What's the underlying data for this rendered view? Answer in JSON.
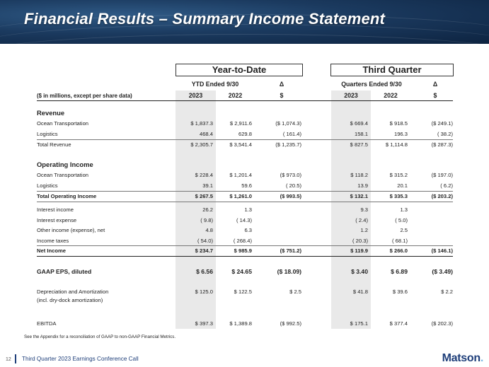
{
  "title": "Financial Results – Summary Income Statement",
  "group_ytd": "Year-to-Date",
  "group_q3": "Third Quarter",
  "sub_ytd": "YTD Ended 9/30",
  "sub_q3": "Quarters Ended 9/30",
  "delta_symbol": "Δ",
  "units_label": "($ in millions, except per share data)",
  "col_2023": "2023",
  "col_2022": "2022",
  "col_dollar": "$",
  "sec_revenue": "Revenue",
  "sec_operating": "Operating Income",
  "rows": {
    "rev_ocean": {
      "label": "Ocean Transportation",
      "cells": [
        "$ 1,837.3",
        "$ 2,911.6",
        "($ 1,074.3)",
        "$ 669.4",
        "$ 918.5",
        "($ 249.1)"
      ]
    },
    "rev_logistics": {
      "label": "Logistics",
      "cells": [
        "468.4",
        "629.8",
        "( 161.4)",
        "158.1",
        "196.3",
        "( 38.2)"
      ]
    },
    "rev_total": {
      "label": "Total Revenue",
      "cells": [
        "$ 2,305.7",
        "$ 3,541.4",
        "($ 1,235.7)",
        "$ 827.5",
        "$ 1,114.8",
        "($ 287.3)"
      ]
    },
    "oi_ocean": {
      "label": "Ocean Transportation",
      "cells": [
        "$ 228.4",
        "$ 1,201.4",
        "($ 973.0)",
        "$ 118.2",
        "$ 315.2",
        "($ 197.0)"
      ]
    },
    "oi_logistics": {
      "label": "Logistics",
      "cells": [
        "39.1",
        "59.6",
        "( 20.5)",
        "13.9",
        "20.1",
        "( 6.2)"
      ]
    },
    "oi_total": {
      "label": "Total Operating Income",
      "cells": [
        "$ 267.5",
        "$ 1,261.0",
        "($ 993.5)",
        "$ 132.1",
        "$ 335.3",
        "($ 203.2)"
      ]
    },
    "int_income": {
      "label": "Interest income",
      "cells": [
        "26.2",
        "1.3",
        "",
        "9.3",
        "1.3",
        ""
      ]
    },
    "int_expense": {
      "label": "Interest expense",
      "cells": [
        "( 9.8)",
        "( 14.3)",
        "",
        "( 2.4)",
        "( 5.0)",
        ""
      ]
    },
    "other_income": {
      "label": "Other income (expense), net",
      "cells": [
        "4.8",
        "6.3",
        "",
        "1.2",
        "2.5",
        ""
      ]
    },
    "income_taxes": {
      "label": "Income taxes",
      "cells": [
        "( 54.0)",
        "( 268.4)",
        "",
        "( 20.3)",
        "( 68.1)",
        ""
      ]
    },
    "net_income": {
      "label": "Net Income",
      "cells": [
        "$ 234.7",
        "$ 985.9",
        "($ 751.2)",
        "$ 119.9",
        "$ 266.0",
        "($ 146.1)"
      ]
    },
    "eps": {
      "label": "GAAP EPS, diluted",
      "cells": [
        "$ 6.56",
        "$ 24.65",
        "($ 18.09)",
        "$ 3.40",
        "$ 6.89",
        "($ 3.49)"
      ]
    },
    "da": {
      "label": "Depreciation and Amortization",
      "label2": "(incl. dry-dock amortization)",
      "cells": [
        "$ 125.0",
        "$ 122.5",
        "$ 2.5",
        "$ 41.8",
        "$ 39.6",
        "$ 2.2"
      ]
    },
    "ebitda": {
      "label": "EBITDA",
      "cells": [
        "$ 397.3",
        "$ 1,389.8",
        "($ 992.5)",
        "$ 175.1",
        "$ 377.4",
        "($ 202.3)"
      ]
    }
  },
  "footnote": "See the Appendix for a reconciliation of GAAP to non-GAAP Financial Metrics.",
  "page_number": "12",
  "footer_text": "Third Quarter 2023 Earnings Conference Call",
  "logo_text": "Matson",
  "logo_dot": ".",
  "colors": {
    "banner": "#1b3a5f",
    "accent": "#1f3f7a",
    "shade": "#e9e9e9"
  }
}
